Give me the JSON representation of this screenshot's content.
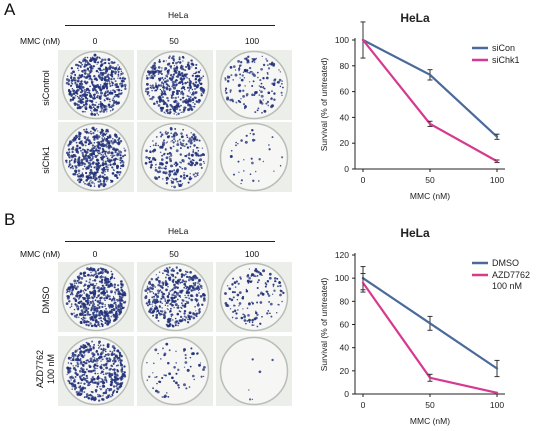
{
  "panels": [
    {
      "letter": "A",
      "dose_label": "MMC (nM)",
      "cell_line": "HeLa",
      "doses": [
        "0",
        "50",
        "100"
      ],
      "rows": [
        "siControl",
        "siChk1"
      ],
      "plate_density": [
        [
          1.0,
          0.8,
          0.28
        ],
        [
          1.0,
          0.45,
          0.06
        ]
      ]
    },
    {
      "letter": "B",
      "dose_label": "MMC (nM)",
      "cell_line": "HeLa",
      "doses": [
        "0",
        "50",
        "100"
      ],
      "rows": [
        "DMSO",
        "AZD7762\n100 nM"
      ],
      "row_lines": [
        [
          "DMSO"
        ],
        [
          "AZD7762",
          "100 nM"
        ]
      ],
      "plate_density": [
        [
          1.0,
          0.75,
          0.25
        ],
        [
          0.85,
          0.12,
          0.01
        ]
      ]
    }
  ],
  "chart_data": [
    {
      "type": "line",
      "title": "HeLa",
      "xlabel": "MMC (nM)",
      "ylabel": "Survival (% of untreated)",
      "x": [
        "0",
        "50",
        "100"
      ],
      "ylim": [
        0,
        100
      ],
      "yticks": [
        0,
        20,
        40,
        60,
        80,
        100
      ],
      "grid": false,
      "legend_position": "top-right",
      "series": [
        {
          "name": "siCon",
          "color": "#4a6a9c",
          "values": [
            100,
            73,
            25
          ],
          "errors": [
            14,
            4,
            2
          ]
        },
        {
          "name": "siChk1",
          "color": "#d63a8e",
          "values": [
            100,
            35,
            6
          ],
          "errors": [
            0,
            2,
            1
          ]
        }
      ]
    },
    {
      "type": "line",
      "title": "HeLa",
      "xlabel": "MMC (nM)",
      "ylabel": "Survival (% of untreated)",
      "x": [
        "0",
        "50",
        "100"
      ],
      "ylim": [
        0,
        120
      ],
      "yticks": [
        0,
        20,
        40,
        60,
        80,
        100,
        120
      ],
      "grid": false,
      "legend_position": "top-right",
      "series": [
        {
          "name": "DMSO",
          "color": "#4a6a9c",
          "values": [
            100,
            61,
            22
          ],
          "errors": [
            10,
            6,
            7
          ]
        },
        {
          "name": "AZD7762\n100 nM",
          "label_lines": [
            "AZD7762",
            "100 nM"
          ],
          "color": "#d63a8e",
          "values": [
            96,
            14,
            1
          ],
          "errors": [
            8,
            3,
            0
          ]
        }
      ]
    }
  ]
}
